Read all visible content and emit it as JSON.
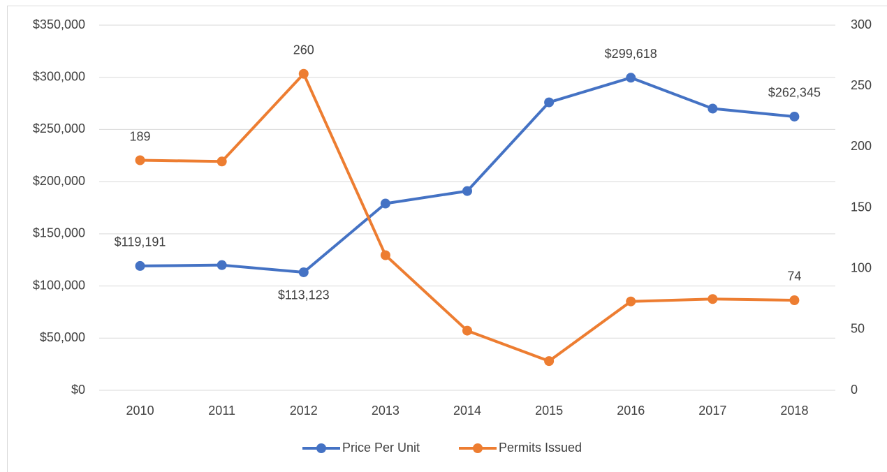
{
  "chart_data": {
    "type": "line",
    "categories": [
      "2010",
      "2011",
      "2012",
      "2013",
      "2014",
      "2015",
      "2016",
      "2017",
      "2018"
    ],
    "series": [
      {
        "name": "Price Per Unit",
        "color": "#4472c4",
        "axis": "y",
        "values": [
          119191,
          120000,
          113123,
          179000,
          191000,
          276000,
          299618,
          270000,
          262345
        ],
        "value_labels": [
          "$119,191",
          null,
          "$113,123",
          null,
          null,
          null,
          "$299,618",
          null,
          "$262,345"
        ]
      },
      {
        "name": "Permits Issued",
        "color": "#ed7d31",
        "axis": "y2",
        "values": [
          189,
          188,
          260,
          111,
          49,
          24,
          73,
          75,
          74
        ],
        "value_labels": [
          "189",
          null,
          "260",
          null,
          null,
          null,
          null,
          null,
          "74"
        ]
      }
    ],
    "ylim": [
      0,
      350000
    ],
    "yticks": [
      {
        "value": 0,
        "label": "$0"
      },
      {
        "value": 50000,
        "label": "$50,000"
      },
      {
        "value": 100000,
        "label": "$100,000"
      },
      {
        "value": 150000,
        "label": "$150,000"
      },
      {
        "value": 200000,
        "label": "$200,000"
      },
      {
        "value": 250000,
        "label": "$250,000"
      },
      {
        "value": 300000,
        "label": "$300,000"
      },
      {
        "value": 350000,
        "label": "$350,000"
      }
    ],
    "y2lim": [
      0,
      300
    ],
    "y2ticks": [
      0,
      50,
      100,
      150,
      200,
      250,
      300
    ],
    "grid": true,
    "legend": "bottom"
  }
}
